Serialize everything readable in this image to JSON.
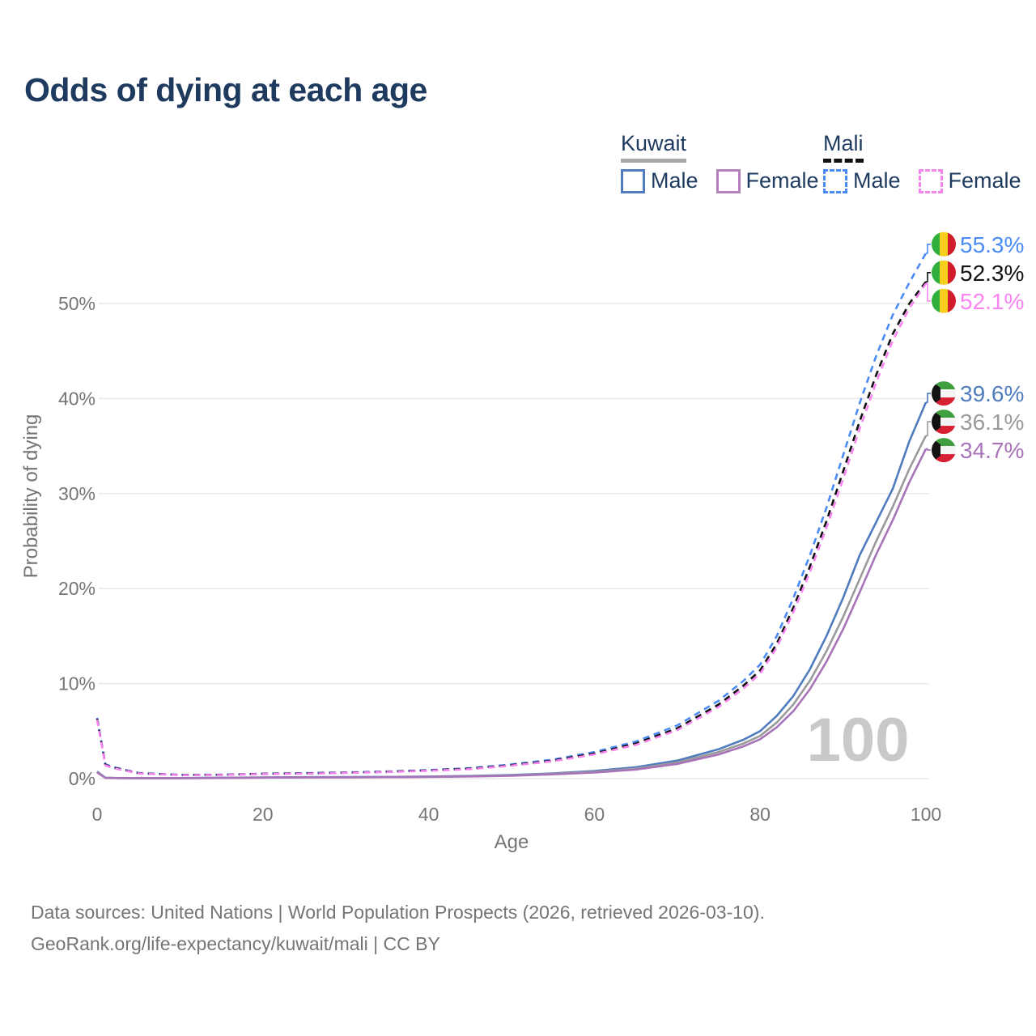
{
  "title": "Odds of dying at each age",
  "watermark": "100",
  "legend": {
    "groups": [
      {
        "country": "Kuwait",
        "line_style": "solid",
        "underline_color": "#a8a8a8",
        "items": [
          {
            "label": "Male",
            "color": "#4f7cbe",
            "dashed": false
          },
          {
            "label": "Female",
            "color": "#b581bd",
            "dashed": false
          }
        ]
      },
      {
        "country": "Mali",
        "line_style": "dashed",
        "underline_color": "#111111",
        "items": [
          {
            "label": "Male",
            "color": "#4b8bf5",
            "dashed": true
          },
          {
            "label": "Female",
            "color": "#f884ef",
            "dashed": true
          }
        ]
      }
    ]
  },
  "footer": {
    "line1": "Data sources: United Nations | World Population Prospects (2026, retrieved 2026-03-10).",
    "line2": "GeoRank.org/life-expectancy/kuwait/mali | CC BY"
  },
  "chart_data": {
    "type": "line",
    "title": "Odds of dying at each age",
    "xlabel": "Age",
    "ylabel": "Probability of dying",
    "xlim": [
      0,
      100
    ],
    "ylim_percent": [
      0,
      57
    ],
    "x_ticks": [
      0,
      20,
      40,
      60,
      80,
      100
    ],
    "y_ticks": [
      {
        "value": 0,
        "label": "0%"
      },
      {
        "value": 10,
        "label": "10%"
      },
      {
        "value": 20,
        "label": "20%"
      },
      {
        "value": 30,
        "label": "30%"
      },
      {
        "value": 40,
        "label": "40%"
      },
      {
        "value": 50,
        "label": "50%"
      }
    ],
    "grid": "horizontal",
    "legend_position": "top-right",
    "x": [
      0,
      1,
      2,
      5,
      10,
      15,
      20,
      25,
      30,
      35,
      40,
      45,
      50,
      55,
      60,
      65,
      70,
      75,
      78,
      80,
      82,
      84,
      86,
      88,
      90,
      92,
      94,
      96,
      98,
      100
    ],
    "series": [
      {
        "name": "Mali Male",
        "country": "Mali",
        "sex": "Male",
        "color": "#4b8bf5",
        "dash": true,
        "flag": "mali",
        "end_label": "55.3%",
        "end_value": 55.3,
        "values": [
          6.4,
          1.5,
          1.2,
          0.6,
          0.4,
          0.42,
          0.52,
          0.58,
          0.65,
          0.75,
          0.9,
          1.1,
          1.5,
          2.0,
          2.8,
          3.9,
          5.6,
          8.2,
          10.3,
          12.0,
          15.0,
          19.0,
          23.5,
          28.5,
          34.0,
          39.5,
          44.5,
          48.8,
          52.2,
          55.3
        ]
      },
      {
        "name": "Mali Both sexes",
        "country": "Mali",
        "sex": "Both",
        "color": "#111111",
        "dash": true,
        "flag": "mali",
        "end_label": "52.3%",
        "end_value": 52.3,
        "values": [
          6.3,
          1.45,
          1.15,
          0.57,
          0.38,
          0.4,
          0.5,
          0.55,
          0.62,
          0.72,
          0.86,
          1.05,
          1.42,
          1.9,
          2.65,
          3.7,
          5.3,
          7.8,
          9.8,
          11.4,
          14.2,
          18.0,
          22.3,
          27.1,
          32.3,
          37.6,
          42.5,
          46.8,
          50.0,
          52.3
        ]
      },
      {
        "name": "Mali Female",
        "country": "Mali",
        "sex": "Female",
        "color": "#f884ef",
        "dash": true,
        "flag": "mali",
        "end_label": "52.1%",
        "end_value": 52.1,
        "values": [
          6.2,
          1.4,
          1.1,
          0.55,
          0.37,
          0.38,
          0.48,
          0.53,
          0.6,
          0.7,
          0.83,
          1.0,
          1.37,
          1.83,
          2.55,
          3.55,
          5.1,
          7.55,
          9.5,
          11.05,
          13.8,
          17.5,
          21.7,
          26.4,
          31.5,
          36.8,
          41.7,
          46.1,
          49.5,
          52.1
        ]
      },
      {
        "name": "Kuwait Male",
        "country": "Kuwait",
        "sex": "Male",
        "color": "#4f7cbe",
        "dash": false,
        "flag": "kuwait",
        "end_label": "39.6%",
        "end_value": 39.6,
        "values": [
          0.75,
          0.09,
          0.07,
          0.05,
          0.06,
          0.09,
          0.13,
          0.15,
          0.16,
          0.18,
          0.22,
          0.28,
          0.38,
          0.55,
          0.8,
          1.2,
          1.9,
          3.1,
          4.1,
          5.0,
          6.6,
          8.7,
          11.5,
          15.0,
          19.0,
          23.5,
          27.0,
          30.5,
          35.5,
          39.6
        ]
      },
      {
        "name": "Kuwait Both sexes",
        "country": "Kuwait",
        "sex": "Both",
        "color": "#9a9a9a",
        "dash": false,
        "flag": "kuwait",
        "end_label": "36.1%",
        "end_value": 36.1,
        "values": [
          0.7,
          0.085,
          0.065,
          0.048,
          0.055,
          0.08,
          0.11,
          0.13,
          0.14,
          0.16,
          0.2,
          0.25,
          0.34,
          0.5,
          0.72,
          1.05,
          1.7,
          2.8,
          3.7,
          4.5,
          5.9,
          7.8,
          10.3,
          13.4,
          17.0,
          21.0,
          25.0,
          28.6,
          32.6,
          36.1
        ]
      },
      {
        "name": "Kuwait Female",
        "country": "Kuwait",
        "sex": "Female",
        "color": "#a873b8",
        "dash": false,
        "flag": "kuwait",
        "end_label": "34.7%",
        "end_value": 34.7,
        "values": [
          0.65,
          0.08,
          0.06,
          0.045,
          0.05,
          0.07,
          0.1,
          0.12,
          0.13,
          0.15,
          0.18,
          0.23,
          0.31,
          0.45,
          0.65,
          0.95,
          1.55,
          2.55,
          3.4,
          4.15,
          5.4,
          7.1,
          9.4,
          12.3,
          15.7,
          19.6,
          23.6,
          27.2,
          31.2,
          34.7
        ]
      }
    ],
    "flag_colors": {
      "mali": {
        "green": "#2faf3e",
        "yellow": "#f7ce1b",
        "red": "#d01c2b"
      },
      "kuwait": {
        "green": "#3f9e3d",
        "white": "#f4f4f4",
        "red": "#d81f33",
        "black": "#131313"
      }
    },
    "style": {
      "grid_color": "#e9e9e9",
      "axis_text_color": "#757575",
      "watermark_color": "#c9c9c9"
    }
  }
}
